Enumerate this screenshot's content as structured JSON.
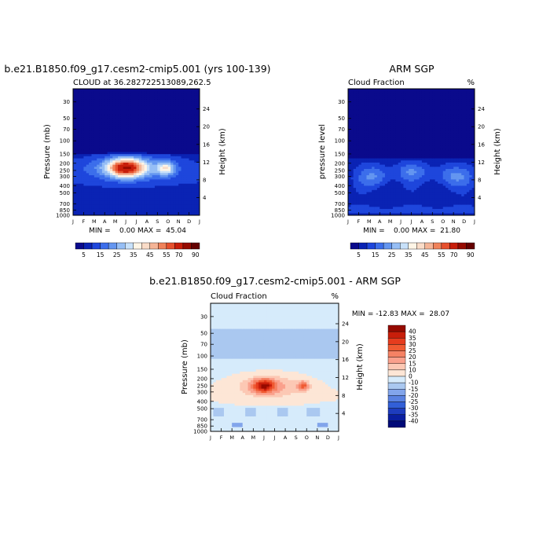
{
  "chart_data": [
    {
      "type": "heatmap",
      "title": "b.e21.B1850.f09_g17.cesm2-cmip5.001 (yrs 100-139)",
      "subtitle": "CLOUD at 36.282722513089,262.5",
      "ylabel": "Pressure (mb)",
      "y2label": "Height (km)",
      "xticks": [
        "J",
        "F",
        "M",
        "A",
        "M",
        "J",
        "J",
        "A",
        "S",
        "O",
        "N",
        "D",
        "J"
      ],
      "yticks": [
        30,
        50,
        70,
        100,
        150,
        200,
        250,
        300,
        400,
        500,
        700,
        850,
        1000
      ],
      "y2ticks": [
        4,
        8,
        12,
        16,
        20,
        24
      ],
      "ylim": [
        1000,
        20
      ],
      "stats": "MIN =    0.00 MAX =  45.04",
      "min": 0.0,
      "max": 45.04,
      "colorbar_labels": [
        "5",
        "15",
        "25",
        "35",
        "45",
        "55",
        "70",
        "90"
      ],
      "colors": [
        "#0a0a8c",
        "#0a23b4",
        "#1e46dc",
        "#3c6eeb",
        "#6496f0",
        "#96bef5",
        "#c8e1fa",
        "#fff5e6",
        "#fadcc8",
        "#f5b496",
        "#f0825a",
        "#e6502d",
        "#c81e0a",
        "#960a00",
        "#640000"
      ],
      "blobs": [
        {
          "month": 5.0,
          "pressure": 230,
          "value": 45,
          "spread_m": 1.6,
          "spread_p": 0.28
        },
        {
          "month": 8.8,
          "pressure": 235,
          "value": 22,
          "spread_m": 0.8,
          "spread_p": 0.2
        },
        {
          "month": 5.5,
          "pressure": 230,
          "value": 18,
          "spread_m": 4.0,
          "spread_p": 0.35
        }
      ]
    },
    {
      "type": "heatmap",
      "title": "ARM SGP",
      "subtitle": "Cloud Fraction",
      "units": "%",
      "ylabel": "pressure level",
      "y2label": "Height (km)",
      "xticks": [
        "J",
        "F",
        "M",
        "A",
        "M",
        "J",
        "J",
        "A",
        "S",
        "O",
        "N",
        "D",
        "J"
      ],
      "yticks": [
        30,
        50,
        70,
        100,
        150,
        200,
        250,
        300,
        400,
        500,
        700,
        850,
        1000
      ],
      "y2ticks": [
        4,
        8,
        12,
        16,
        20,
        24
      ],
      "ylim": [
        1000,
        20
      ],
      "stats": "MIN =    0.00 MAX =  21.80",
      "min": 0.0,
      "max": 21.8,
      "colorbar_labels": [
        "5",
        "15",
        "25",
        "35",
        "45",
        "55",
        "70",
        "90"
      ],
      "blobs": [
        {
          "month": 2.5,
          "pressure": 300,
          "value": 14,
          "spread_m": 1.5,
          "spread_p": 0.35
        },
        {
          "month": 6.0,
          "pressure": 260,
          "value": 12,
          "spread_m": 1.5,
          "spread_p": 0.3
        },
        {
          "month": 10.0,
          "pressure": 300,
          "value": 13,
          "spread_m": 2.0,
          "spread_p": 0.35
        }
      ]
    },
    {
      "type": "heatmap",
      "title": "b.e21.B1850.f09_g17.cesm2-cmip5.001 - ARM SGP",
      "subtitle": "Cloud Fraction",
      "units": "%",
      "ylabel": "Pressure (mb)",
      "y2label": "Height (km)",
      "xticks": [
        "J",
        "F",
        "M",
        "A",
        "M",
        "J",
        "J",
        "A",
        "S",
        "O",
        "N",
        "D",
        "J"
      ],
      "yticks": [
        30,
        50,
        70,
        100,
        150,
        200,
        250,
        300,
        400,
        500,
        700,
        850,
        1000
      ],
      "y2ticks": [
        4,
        8,
        12,
        16,
        20,
        24
      ],
      "ylim": [
        1000,
        20
      ],
      "stats": "MIN = -12.83 MAX =  28.07",
      "min": -12.83,
      "max": 28.07,
      "colorbar_labels": [
        "40",
        "35",
        "30",
        "25",
        "20",
        "15",
        "10",
        "0",
        "-10",
        "-15",
        "-20",
        "-25",
        "-30",
        "-35",
        "-40"
      ],
      "colors": [
        "#960a00",
        "#c81e0a",
        "#e63c1e",
        "#f05a32",
        "#f58264",
        "#faa08c",
        "#fcc8b4",
        "#fde6d6",
        "#d6ebfb",
        "#aac8f0",
        "#82a5eb",
        "#5a82e1",
        "#325fd7",
        "#1e3cbe",
        "#0a1ea0",
        "#000a78"
      ],
      "blobs": [
        {
          "month": 5.0,
          "pressure": 250,
          "value": 28,
          "spread_m": 1.0,
          "spread_p": 0.2
        },
        {
          "month": 8.7,
          "pressure": 250,
          "value": 20,
          "spread_m": 0.5,
          "spread_p": 0.15
        },
        {
          "month": 5.5,
          "pressure": 250,
          "value": 12,
          "spread_m": 3.2,
          "spread_p": 0.35
        }
      ]
    }
  ]
}
